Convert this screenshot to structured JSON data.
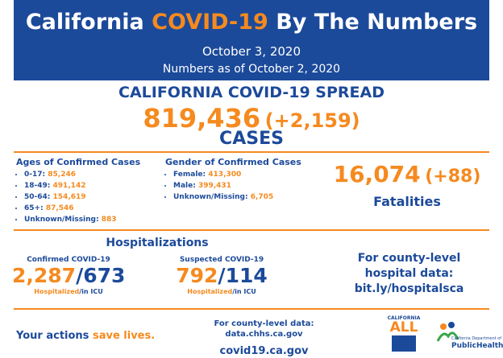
{
  "header": {
    "title_start": "California",
    "title_highlight": "COVID-19",
    "title_end": "By The Numbers",
    "date": "October 3, 2020",
    "as_of": "Numbers as of October 2, 2020"
  },
  "spread": {
    "heading": "CALIFORNIA COVID-19 SPREAD",
    "cases": "819,436",
    "change": "(+2,159)",
    "label": "CASES"
  },
  "ages": {
    "title": "Ages of Confirmed Cases",
    "items": [
      {
        "label": "0-17:",
        "value": "85,246"
      },
      {
        "label": "18-49:",
        "value": "491,142"
      },
      {
        "label": "50-64:",
        "value": "154,619"
      },
      {
        "label": "65+:",
        "value": "87,546"
      },
      {
        "label": "Unknown/Missing:",
        "value": "883"
      }
    ]
  },
  "gender": {
    "title": "Gender of Confirmed Cases",
    "items": [
      {
        "label": "Female:",
        "value": "413,300"
      },
      {
        "label": "Male:",
        "value": "399,431"
      },
      {
        "label": "Unknown/Missing:",
        "value": "6,705"
      }
    ]
  },
  "fatalities": {
    "count": "16,074",
    "change": "(+88)",
    "label": "Fatalities"
  },
  "hospitalizations": {
    "title": "Hospitalizations",
    "separator": "/",
    "hospitalized_label": "Hospitalized",
    "icu_label": "/in ICU",
    "confirmed": {
      "label": "Confirmed COVID-19",
      "hospitalized": "2,287",
      "icu": "673"
    },
    "suspected": {
      "label": "Suspected COVID-19",
      "hospitalized": "792",
      "icu": "114"
    }
  },
  "county_hospital": {
    "text": "For county-level hospital data:",
    "link": "bit.ly/hospitalsca"
  },
  "footer": {
    "actions_start": "Your actions",
    "actions_end": "save lives.",
    "county_text": "For county-level data:",
    "county_link": "data.chhs.ca.gov",
    "site": "covid19.ca.gov",
    "logo_ca_top": "CALIFORNIA",
    "logo_ca_all": "ALL",
    "logo_cdph_small": "California Department of",
    "logo_cdph": "PublicHealth"
  }
}
